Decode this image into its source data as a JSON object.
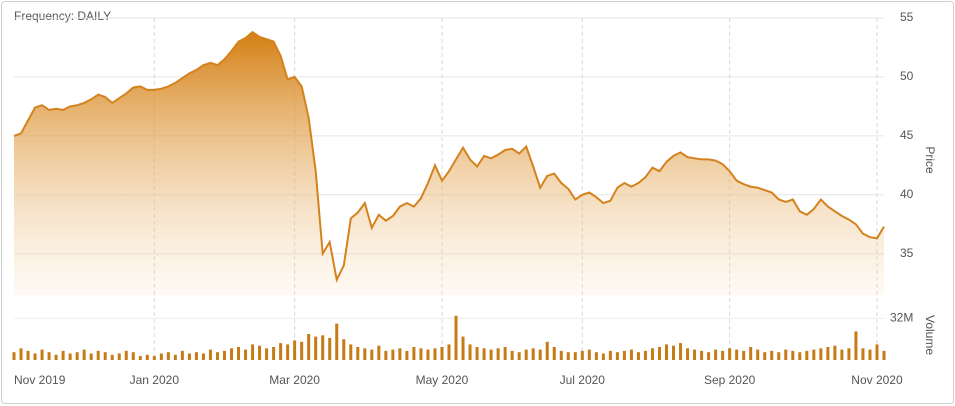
{
  "chart_data": {
    "type": "area",
    "title": "Frequency: DAILY",
    "y_label": "Price",
    "y2_label": "Volume",
    "categories": [
      "Nov 2019",
      null,
      null,
      null,
      null,
      null,
      null,
      null,
      null,
      null,
      null,
      null,
      null,
      null,
      null,
      null,
      null,
      null,
      null,
      null,
      "Jan 2020",
      null,
      null,
      null,
      null,
      null,
      null,
      null,
      null,
      null,
      null,
      null,
      null,
      null,
      null,
      null,
      null,
      null,
      null,
      null,
      "Mar 2020",
      null,
      null,
      null,
      null,
      null,
      null,
      null,
      null,
      null,
      null,
      null,
      null,
      null,
      null,
      null,
      null,
      null,
      null,
      null,
      null,
      "May 2020",
      null,
      null,
      null,
      null,
      null,
      null,
      null,
      null,
      null,
      null,
      null,
      null,
      null,
      null,
      null,
      null,
      null,
      null,
      null,
      "Jul 2020",
      null,
      null,
      null,
      null,
      null,
      null,
      null,
      null,
      null,
      null,
      null,
      null,
      null,
      null,
      null,
      null,
      null,
      null,
      null,
      null,
      "Sep 2020",
      null,
      null,
      null,
      null,
      null,
      null,
      null,
      null,
      null,
      null,
      null,
      null,
      null,
      null,
      null,
      null,
      null,
      null,
      null,
      null,
      "Nov 2020",
      null
    ],
    "series": [
      {
        "name": "Price",
        "color": "#d4821e",
        "values": [
          45.0,
          45.2,
          46.3,
          47.4,
          47.6,
          47.2,
          47.3,
          47.2,
          47.5,
          47.6,
          47.8,
          48.1,
          48.5,
          48.3,
          47.8,
          48.2,
          48.6,
          49.1,
          49.2,
          48.9,
          48.9,
          49.0,
          49.2,
          49.5,
          49.9,
          50.3,
          50.6,
          51.0,
          51.2,
          51.0,
          51.5,
          52.2,
          53.0,
          53.3,
          53.8,
          53.4,
          53.2,
          53.0,
          51.8,
          49.8,
          50.0,
          49.2,
          46.5,
          42.0,
          35.0,
          36.0,
          32.8,
          34.0,
          38.0,
          38.5,
          39.3,
          37.2,
          38.3,
          37.8,
          38.2,
          39.0,
          39.3,
          39.0,
          39.7,
          41.0,
          42.5,
          41.2,
          42.0,
          43.0,
          44.0,
          43.0,
          42.4,
          43.3,
          43.1,
          43.4,
          43.8,
          43.9,
          43.5,
          44.1,
          42.4,
          40.6,
          41.6,
          41.8,
          41.0,
          40.5,
          39.6,
          40.0,
          40.2,
          39.8,
          39.3,
          39.5,
          40.6,
          41.0,
          40.7,
          41.0,
          41.5,
          42.3,
          42.0,
          42.8,
          43.3,
          43.6,
          43.2,
          43.1,
          43.0,
          43.0,
          42.9,
          42.6,
          42.0,
          41.2,
          40.9,
          40.7,
          40.6,
          40.4,
          40.2,
          39.6,
          39.4,
          39.6,
          38.6,
          38.3,
          38.8,
          39.6,
          39.0,
          38.6,
          38.2,
          37.9,
          37.5,
          36.7,
          36.4,
          36.3,
          37.3
        ]
      },
      {
        "name": "Volume",
        "color": "#c77b16",
        "axis": "y2",
        "values": [
          6,
          9,
          7,
          5,
          8,
          6,
          4,
          7,
          5,
          6,
          8,
          5,
          7,
          6,
          4,
          5,
          7,
          6,
          3,
          4,
          3,
          5,
          6,
          4,
          7,
          5,
          6,
          5,
          8,
          6,
          7,
          9,
          10,
          8,
          12,
          11,
          9,
          10,
          13,
          12,
          15,
          14,
          20,
          18,
          19,
          17,
          28,
          16,
          12,
          10,
          9,
          8,
          11,
          7,
          8,
          9,
          7,
          10,
          9,
          8,
          9,
          10,
          12,
          34,
          18,
          12,
          10,
          9,
          8,
          9,
          10,
          7,
          6,
          8,
          9,
          8,
          14,
          10,
          7,
          6,
          6,
          7,
          8,
          6,
          5,
          7,
          6,
          7,
          8,
          6,
          7,
          9,
          10,
          12,
          11,
          13,
          9,
          8,
          7,
          6,
          8,
          7,
          9,
          8,
          7,
          10,
          8,
          6,
          7,
          6,
          8,
          7,
          6,
          7,
          8,
          9,
          10,
          11,
          8,
          9,
          22,
          9,
          8,
          12,
          7
        ]
      }
    ],
    "ylim": [
      31.5,
      55
    ],
    "yticks": [
      35,
      40,
      45,
      50,
      55
    ],
    "y2lim": [
      0,
      40
    ],
    "y2ticks": [
      {
        "value": 32,
        "label": "32M"
      }
    ],
    "grid": true
  }
}
